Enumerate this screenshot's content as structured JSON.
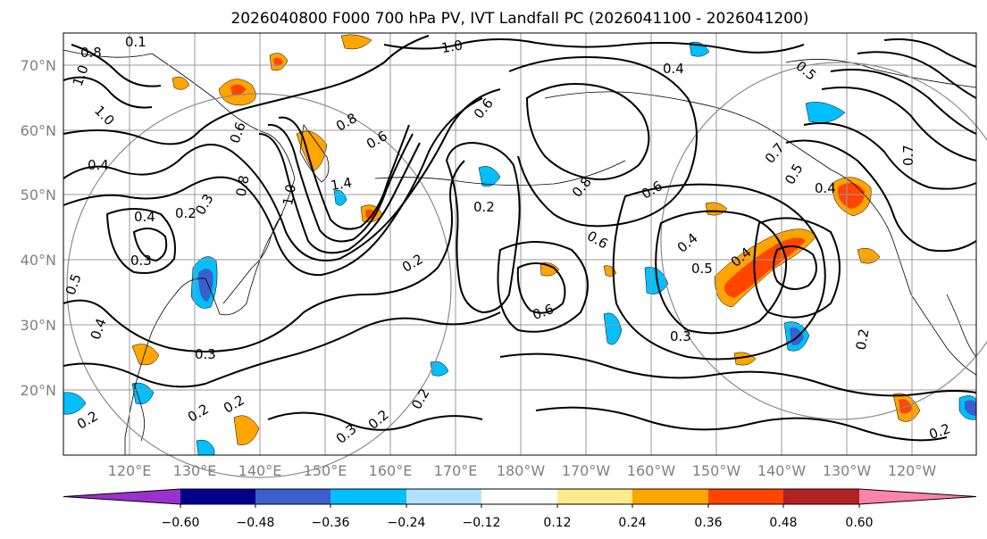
{
  "title": "2026040800 F000 700 hPa PV, IVT Landfall PC (2026041100 - 2026041200)",
  "y_ticks": [
    "70°N",
    "60°N",
    "50°N",
    "40°N",
    "30°N",
    "20°N"
  ],
  "x_ticks": [
    "120°E",
    "130°E",
    "140°E",
    "150°E",
    "160°E",
    "170°E",
    "180°W",
    "170°W",
    "160°W",
    "150°W",
    "140°W",
    "130°W",
    "120°W"
  ],
  "colorbar": {
    "ticks": [
      "−0.60",
      "−0.48",
      "−0.36",
      "−0.24",
      "−0.12",
      "0.12",
      "0.24",
      "0.36",
      "0.48",
      "0.60"
    ],
    "colors": [
      "#9932cc",
      "#00008b",
      "#3a5fcd",
      "#00bfff",
      "#b0e2ff",
      "#ffffff",
      "#ffeb8a",
      "#ffa500",
      "#ff4500",
      "#b22222",
      "#ff82ab"
    ]
  },
  "contour_labels": [
    "0.1",
    "1.0",
    "0.8",
    "1.0",
    "0.4",
    "0.6",
    "0.5",
    "0.2",
    "0.8",
    "0.6",
    "1.0",
    "0.6",
    "0.8",
    "0.4",
    "0.4",
    "1.0",
    "1.4",
    "0.2",
    "0.8",
    "0.6",
    "0.4",
    "0.3",
    "0.5",
    "0.2",
    "0.6",
    "0.6",
    "0.4",
    "0.5",
    "0.4",
    "0.3",
    "0.7",
    "0.3",
    "0.2",
    "0.2",
    "0.2",
    "0.2",
    "0.3",
    "0.2",
    "0.3",
    "0.5",
    "0.7",
    "0.4",
    "0.2",
    "0.2"
  ]
}
